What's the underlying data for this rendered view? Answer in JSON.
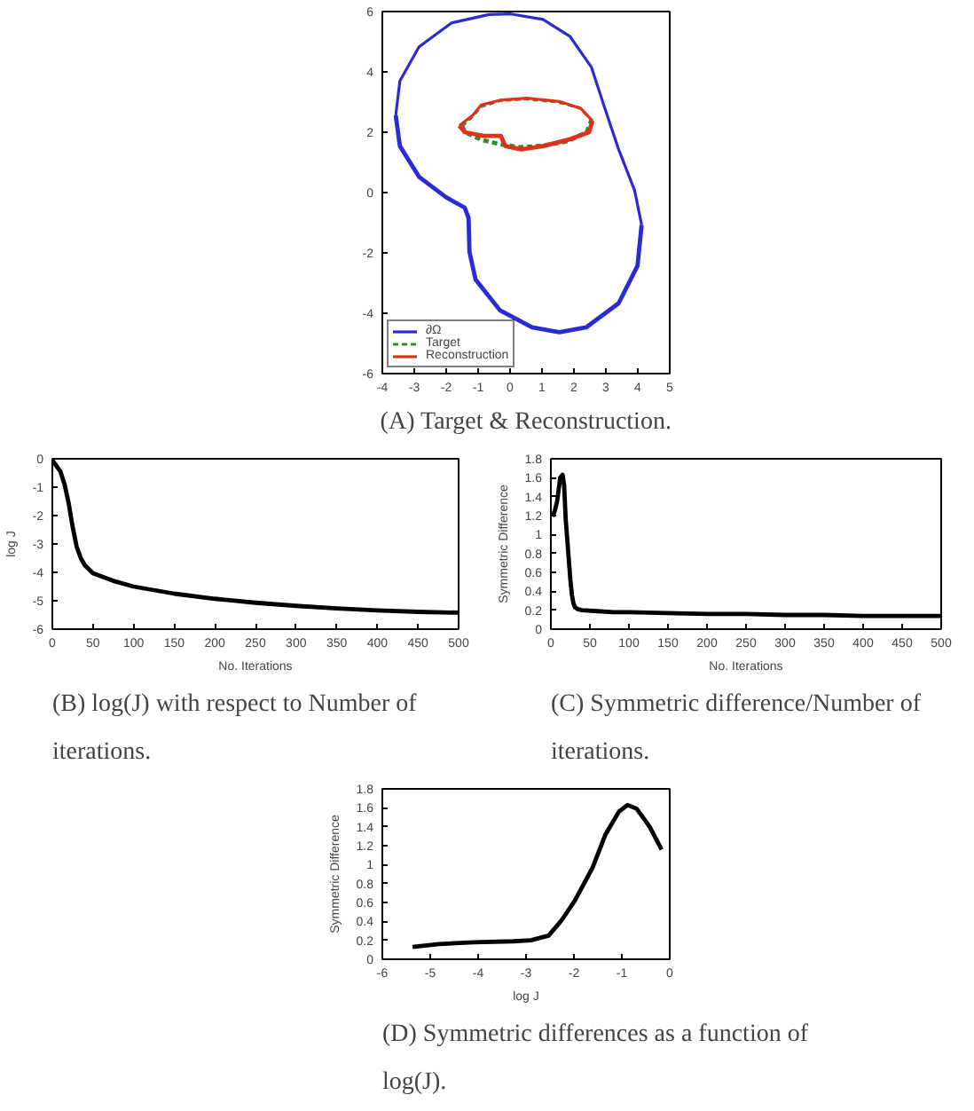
{
  "chart_data": [
    {
      "type": "line",
      "title": "(A) Target & Reconstruction.",
      "xlim": [
        -4,
        5
      ],
      "ylim": [
        -6,
        6
      ],
      "xticks": [
        -4,
        -3,
        -2,
        -1,
        0,
        1,
        2,
        3,
        4,
        5
      ],
      "yticks": [
        -6,
        -4,
        -2,
        0,
        2,
        4,
        6
      ],
      "grid": false,
      "legend": "bottom left",
      "series": [
        {
          "name": "∂Ω",
          "color": "#2b2bd6",
          "line_style": "solid",
          "x": [
            -3.58,
            -3.45,
            -2.85,
            -1.84,
            -0.66,
            0.02,
            1.03,
            1.88,
            2.55,
            2.97,
            3.4,
            3.9,
            4.12
          ],
          "values": [
            2.56,
            3.7,
            4.83,
            5.62,
            5.9,
            5.92,
            5.74,
            5.17,
            4.15,
            2.79,
            1.43,
            0.07,
            -1.07
          ]
        },
        {
          "color": "#2b2bd6",
          "line_style": "solid",
          "x": [
            -3.58,
            -3.45,
            -2.85,
            -2.0,
            -1.42,
            -1.3,
            -1.27,
            -1.08,
            -0.32,
            0.69,
            1.54,
            2.38,
            3.4,
            3.99,
            4.12
          ],
          "values": [
            2.56,
            1.54,
            0.52,
            -0.16,
            -0.5,
            -0.84,
            -1.97,
            -2.88,
            -3.9,
            -4.47,
            -4.63,
            -4.47,
            -3.67,
            -2.43,
            -1.07
          ]
        },
        {
          "name": "Target",
          "color": "#2e8b2e",
          "line_style": "dashed",
          "x": [
            -1.5,
            -1.2,
            -0.9,
            -0.3,
            0.5,
            1.5,
            2.2,
            2.55
          ],
          "values": [
            2.2,
            2.5,
            2.85,
            3.05,
            3.1,
            3.0,
            2.8,
            2.4
          ]
        },
        {
          "color": "#2e8b2e",
          "line_style": "dashed",
          "x": [
            -1.5,
            -1.4,
            -0.9,
            -0.3,
            0.3,
            1.0,
            1.8,
            2.4,
            2.55
          ],
          "values": [
            2.2,
            2.0,
            1.75,
            1.6,
            1.5,
            1.55,
            1.7,
            2.0,
            2.4
          ]
        },
        {
          "name": "Reconstruction",
          "color": "#e0301e",
          "line_style": "solid",
          "x": [
            -1.59,
            -1.17,
            -0.91,
            -0.32,
            0.52,
            1.54,
            2.21,
            2.58
          ],
          "values": [
            2.22,
            2.56,
            2.9,
            3.06,
            3.13,
            3.02,
            2.79,
            2.38
          ]
        },
        {
          "color": "#e0301e",
          "line_style": "solid",
          "x": [
            -1.59,
            -1.42,
            -0.83,
            -0.29,
            -0.15,
            0.35,
            1.03,
            1.88,
            2.47,
            2.58
          ],
          "values": [
            2.22,
            2.0,
            1.88,
            1.88,
            1.54,
            1.43,
            1.54,
            1.77,
            2.0,
            2.38
          ]
        }
      ]
    },
    {
      "type": "line",
      "title": "(B) log(J) with respect to Number of iterations.",
      "xlabel": "No. Iterations",
      "ylabel": "log J",
      "xlim": [
        0,
        500
      ],
      "ylim": [
        -6,
        0
      ],
      "xticks": [
        0,
        50,
        100,
        150,
        200,
        250,
        300,
        350,
        400,
        450,
        500
      ],
      "yticks": [
        -6,
        -5,
        -4,
        -3,
        -2,
        -1,
        0
      ],
      "grid": false,
      "series": [
        {
          "color": "#000000",
          "x": [
            0,
            5,
            10,
            15,
            20,
            25,
            30,
            35,
            40,
            50,
            75,
            100,
            150,
            200,
            250,
            300,
            350,
            400,
            450,
            500
          ],
          "values": [
            -0.05,
            -0.25,
            -0.45,
            -0.9,
            -1.55,
            -2.4,
            -3.1,
            -3.5,
            -3.75,
            -4.03,
            -4.3,
            -4.5,
            -4.75,
            -4.93,
            -5.07,
            -5.18,
            -5.27,
            -5.34,
            -5.39,
            -5.42
          ]
        }
      ]
    },
    {
      "type": "line",
      "title": "(C) Symmetric difference/Number of iterations.",
      "xlabel": "No. Iterations",
      "ylabel": "Symmetric Difference",
      "xlim": [
        0,
        500
      ],
      "ylim": [
        0,
        1.8
      ],
      "xticks": [
        0,
        50,
        100,
        150,
        200,
        250,
        300,
        350,
        400,
        450,
        500
      ],
      "yticks": [
        0,
        0.2,
        0.4,
        0.6,
        0.8,
        1,
        1.2,
        1.4,
        1.6,
        1.8
      ],
      "grid": false,
      "series": [
        {
          "color": "#000000",
          "x": [
            2,
            5,
            8,
            12,
            15,
            17,
            19,
            21,
            23,
            25,
            27,
            29,
            31,
            35,
            40,
            60,
            80,
            100,
            150,
            200,
            250,
            300,
            350,
            400,
            450,
            500
          ],
          "values": [
            1.19,
            1.25,
            1.35,
            1.6,
            1.63,
            1.52,
            1.16,
            0.95,
            0.73,
            0.52,
            0.36,
            0.27,
            0.23,
            0.21,
            0.2,
            0.19,
            0.18,
            0.18,
            0.17,
            0.16,
            0.16,
            0.15,
            0.15,
            0.14,
            0.14,
            0.14
          ]
        }
      ]
    },
    {
      "type": "line",
      "title": "(D) Symmetric differences as a function of log(J).",
      "xlabel": "log J",
      "ylabel": "Symmetric Difference",
      "xlim": [
        -6,
        0
      ],
      "ylim": [
        0,
        1.8
      ],
      "xticks": [
        -6,
        -5,
        -4,
        -3,
        -2,
        -1,
        0
      ],
      "yticks": [
        0,
        0.2,
        0.4,
        0.6,
        0.8,
        1,
        1.2,
        1.4,
        1.6,
        1.8
      ],
      "grid": false,
      "series": [
        {
          "color": "#000000",
          "x": [
            -5.37,
            -4.82,
            -4.09,
            -3.27,
            -2.9,
            -2.53,
            -2.26,
            -1.98,
            -1.61,
            -1.34,
            -1.06,
            -0.88,
            -0.69,
            -0.42,
            -0.17
          ],
          "values": [
            0.13,
            0.16,
            0.18,
            0.19,
            0.2,
            0.25,
            0.41,
            0.62,
            0.97,
            1.32,
            1.56,
            1.63,
            1.59,
            1.4,
            1.16
          ]
        }
      ]
    }
  ]
}
